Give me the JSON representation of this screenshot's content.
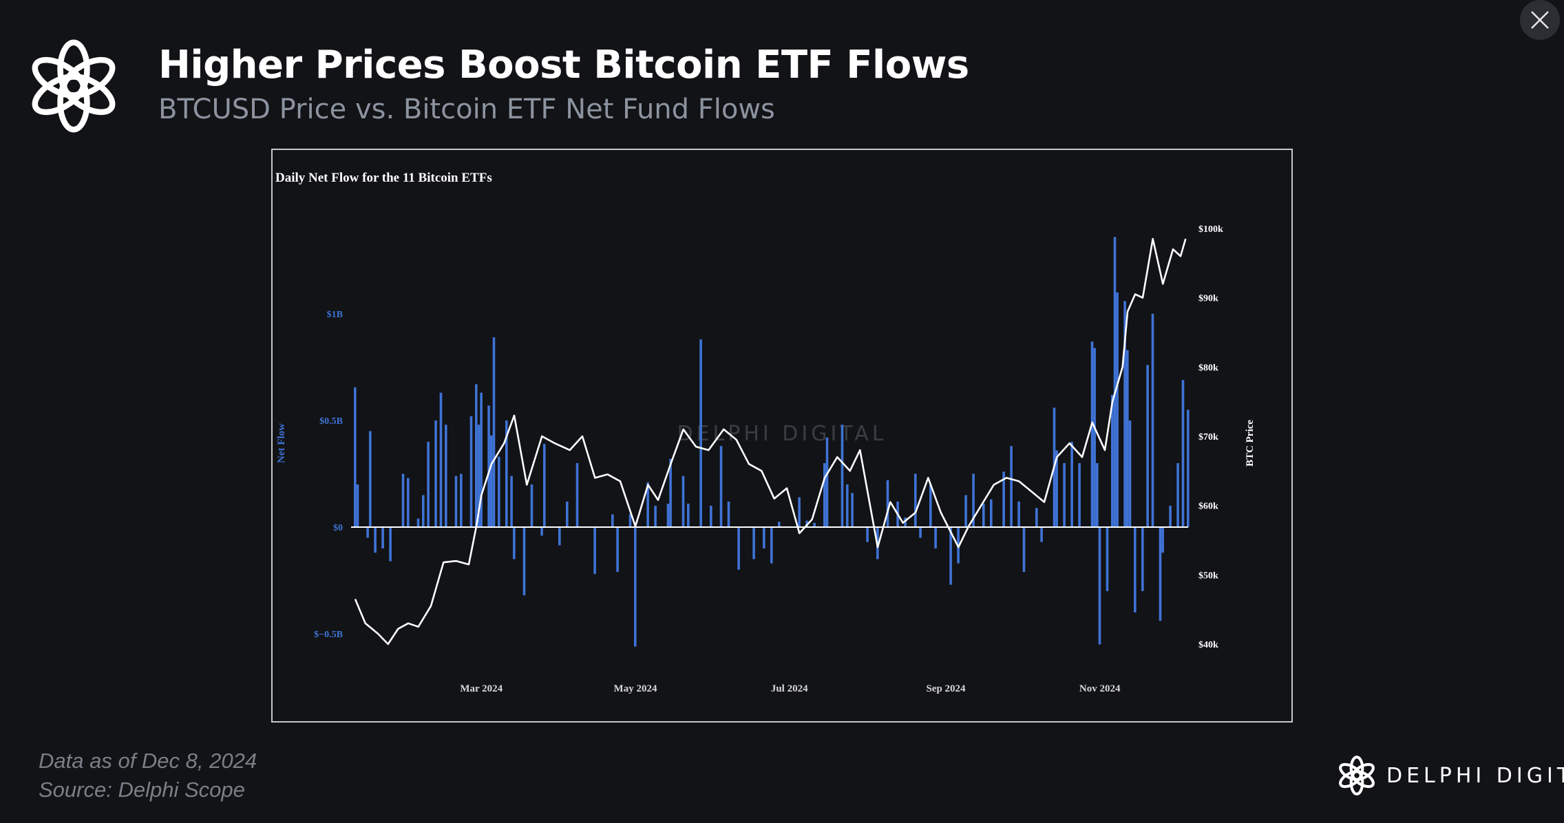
{
  "header": {
    "title": "Higher Prices Boost Bitcoin ETF Flows",
    "subtitle": "BTCUSD Price vs. Bitcoin ETF Net Fund Flows"
  },
  "icons": {
    "logo": "delphi-knot-logo-icon",
    "close": "close-icon"
  },
  "footer": {
    "data_as_of": "Data as of Dec 8, 2024",
    "source": "Source: Delphi Scope",
    "brand": "DELPHI DIGITAL"
  },
  "chart_data": {
    "type": "bar",
    "title": "Daily Net Flow for the 11 Bitcoin ETFs",
    "watermark": "DELPHI DIGITAL",
    "xlabel": "",
    "ylabel": "Net Flow",
    "y2label": "BTC Price",
    "x_ticks": [
      "Mar 2024",
      "May 2024",
      "Jul 2024",
      "Sep 2024",
      "Nov 2024"
    ],
    "x_tick_dates": [
      "2024-03-01",
      "2024-05-01",
      "2024-07-01",
      "2024-09-01",
      "2024-11-01"
    ],
    "y_ticks": [
      {
        "value": 1000,
        "label": "$1B"
      },
      {
        "value": 500,
        "label": "$0.5B"
      },
      {
        "value": 0,
        "label": "$0"
      },
      {
        "value": -500,
        "label": "$−0.5B"
      }
    ],
    "y2_ticks": [
      {
        "value": 100000,
        "label": "$100k"
      },
      {
        "value": 90000,
        "label": "$90k"
      },
      {
        "value": 80000,
        "label": "$80k"
      },
      {
        "value": 70000,
        "label": "$70k"
      },
      {
        "value": 60000,
        "label": "$60k"
      },
      {
        "value": 50000,
        "label": "$50k"
      },
      {
        "value": 40000,
        "label": "$40k"
      }
    ],
    "ylim": [
      -650,
      1400
    ],
    "y2lim": [
      40000,
      100000
    ],
    "colors": {
      "bars": "#3f73d6",
      "price_line": "#ffffff",
      "axis_labels_left": "#3f73d6",
      "axis_labels_right": "#ffffff",
      "zero_line": "#ffffff"
    },
    "series": [
      {
        "name": "Net Flow",
        "unit": "$M",
        "points": [
          [
            "2024-01-11",
            655
          ],
          [
            "2024-01-12",
            200
          ],
          [
            "2024-01-16",
            -50
          ],
          [
            "2024-01-17",
            450
          ],
          [
            "2024-01-19",
            -120
          ],
          [
            "2024-01-22",
            -100
          ],
          [
            "2024-01-25",
            -160
          ],
          [
            "2024-01-26",
            0
          ],
          [
            "2024-01-30",
            250
          ],
          [
            "2024-02-01",
            230
          ],
          [
            "2024-02-05",
            40
          ],
          [
            "2024-02-07",
            150
          ],
          [
            "2024-02-09",
            400
          ],
          [
            "2024-02-12",
            500
          ],
          [
            "2024-02-14",
            630
          ],
          [
            "2024-02-16",
            480
          ],
          [
            "2024-02-20",
            240
          ],
          [
            "2024-02-22",
            250
          ],
          [
            "2024-02-26",
            520
          ],
          [
            "2024-02-28",
            670
          ],
          [
            "2024-02-29",
            480
          ],
          [
            "2024-03-01",
            630
          ],
          [
            "2024-03-04",
            570
          ],
          [
            "2024-03-05",
            430
          ],
          [
            "2024-03-06",
            890
          ],
          [
            "2024-03-08",
            330
          ],
          [
            "2024-03-11",
            500
          ],
          [
            "2024-03-13",
            240
          ],
          [
            "2024-03-14",
            -150
          ],
          [
            "2024-03-18",
            -320
          ],
          [
            "2024-03-21",
            200
          ],
          [
            "2024-03-25",
            -40
          ],
          [
            "2024-03-26",
            390
          ],
          [
            "2024-04-01",
            -85
          ],
          [
            "2024-04-04",
            120
          ],
          [
            "2024-04-08",
            300
          ],
          [
            "2024-04-15",
            -220
          ],
          [
            "2024-04-22",
            60
          ],
          [
            "2024-04-24",
            -210
          ],
          [
            "2024-04-29",
            60
          ],
          [
            "2024-05-01",
            -560
          ],
          [
            "2024-05-06",
            210
          ],
          [
            "2024-05-09",
            100
          ],
          [
            "2024-05-14",
            110
          ],
          [
            "2024-05-15",
            320
          ],
          [
            "2024-05-20",
            240
          ],
          [
            "2024-05-22",
            110
          ],
          [
            "2024-05-27",
            880
          ],
          [
            "2024-05-31",
            100
          ],
          [
            "2024-06-04",
            380
          ],
          [
            "2024-06-07",
            120
          ],
          [
            "2024-06-11",
            -200
          ],
          [
            "2024-06-17",
            -150
          ],
          [
            "2024-06-21",
            -100
          ],
          [
            "2024-06-24",
            -170
          ],
          [
            "2024-06-27",
            25
          ],
          [
            "2024-07-05",
            140
          ],
          [
            "2024-07-08",
            30
          ],
          [
            "2024-07-11",
            20
          ],
          [
            "2024-07-15",
            300
          ],
          [
            "2024-07-16",
            420
          ],
          [
            "2024-07-22",
            480
          ],
          [
            "2024-07-24",
            200
          ],
          [
            "2024-07-26",
            160
          ],
          [
            "2024-08-01",
            -70
          ],
          [
            "2024-08-05",
            -150
          ],
          [
            "2024-08-09",
            220
          ],
          [
            "2024-08-13",
            120
          ],
          [
            "2024-08-16",
            45
          ],
          [
            "2024-08-20",
            250
          ],
          [
            "2024-08-22",
            -50
          ],
          [
            "2024-08-26",
            200
          ],
          [
            "2024-08-28",
            -100
          ],
          [
            "2024-09-03",
            -270
          ],
          [
            "2024-09-06",
            -170
          ],
          [
            "2024-09-09",
            150
          ],
          [
            "2024-09-12",
            250
          ],
          [
            "2024-09-16",
            110
          ],
          [
            "2024-09-19",
            130
          ],
          [
            "2024-09-24",
            260
          ],
          [
            "2024-09-27",
            380
          ],
          [
            "2024-09-30",
            120
          ],
          [
            "2024-10-02",
            -210
          ],
          [
            "2024-10-07",
            90
          ],
          [
            "2024-10-09",
            -70
          ],
          [
            "2024-10-14",
            560
          ],
          [
            "2024-10-15",
            360
          ],
          [
            "2024-10-18",
            300
          ],
          [
            "2024-10-21",
            400
          ],
          [
            "2024-10-24",
            300
          ],
          [
            "2024-10-29",
            870
          ],
          [
            "2024-10-30",
            840
          ],
          [
            "2024-10-31",
            300
          ],
          [
            "2024-11-01",
            -550
          ],
          [
            "2024-11-04",
            -300
          ],
          [
            "2024-11-06",
            620
          ],
          [
            "2024-11-07",
            1360
          ],
          [
            "2024-11-08",
            1100
          ],
          [
            "2024-11-11",
            1060
          ],
          [
            "2024-11-12",
            830
          ],
          [
            "2024-11-13",
            500
          ],
          [
            "2024-11-15",
            -400
          ],
          [
            "2024-11-18",
            -300
          ],
          [
            "2024-11-20",
            760
          ],
          [
            "2024-11-22",
            1000
          ],
          [
            "2024-11-25",
            -440
          ],
          [
            "2024-11-26",
            -120
          ],
          [
            "2024-11-29",
            100
          ],
          [
            "2024-12-02",
            300
          ],
          [
            "2024-12-04",
            690
          ],
          [
            "2024-12-06",
            550
          ]
        ]
      },
      {
        "name": "BTC Price",
        "unit": "USD",
        "points": [
          [
            "2024-01-11",
            46500
          ],
          [
            "2024-01-15",
            43000
          ],
          [
            "2024-01-20",
            41500
          ],
          [
            "2024-01-24",
            40000
          ],
          [
            "2024-01-28",
            42200
          ],
          [
            "2024-02-01",
            43000
          ],
          [
            "2024-02-05",
            42500
          ],
          [
            "2024-02-10",
            45500
          ],
          [
            "2024-02-15",
            51800
          ],
          [
            "2024-02-20",
            52000
          ],
          [
            "2024-02-25",
            51500
          ],
          [
            "2024-02-28",
            57000
          ],
          [
            "2024-03-01",
            61500
          ],
          [
            "2024-03-05",
            66000
          ],
          [
            "2024-03-10",
            69000
          ],
          [
            "2024-03-14",
            73000
          ],
          [
            "2024-03-19",
            63000
          ],
          [
            "2024-03-25",
            70000
          ],
          [
            "2024-03-30",
            69000
          ],
          [
            "2024-04-05",
            68000
          ],
          [
            "2024-04-10",
            70000
          ],
          [
            "2024-04-15",
            64000
          ],
          [
            "2024-04-20",
            64500
          ],
          [
            "2024-04-25",
            63500
          ],
          [
            "2024-05-01",
            57000
          ],
          [
            "2024-05-06",
            63000
          ],
          [
            "2024-05-10",
            60800
          ],
          [
            "2024-05-15",
            66000
          ],
          [
            "2024-05-20",
            71000
          ],
          [
            "2024-05-25",
            68500
          ],
          [
            "2024-05-30",
            68000
          ],
          [
            "2024-06-05",
            71000
          ],
          [
            "2024-06-10",
            69500
          ],
          [
            "2024-06-15",
            66000
          ],
          [
            "2024-06-20",
            65000
          ],
          [
            "2024-06-25",
            61000
          ],
          [
            "2024-06-30",
            62500
          ],
          [
            "2024-07-05",
            56000
          ],
          [
            "2024-07-10",
            58000
          ],
          [
            "2024-07-15",
            64000
          ],
          [
            "2024-07-20",
            67000
          ],
          [
            "2024-07-25",
            65000
          ],
          [
            "2024-07-29",
            68000
          ],
          [
            "2024-08-05",
            54000
          ],
          [
            "2024-08-10",
            60500
          ],
          [
            "2024-08-15",
            57500
          ],
          [
            "2024-08-20",
            59000
          ],
          [
            "2024-08-25",
            64000
          ],
          [
            "2024-08-30",
            59000
          ],
          [
            "2024-09-06",
            54000
          ],
          [
            "2024-09-10",
            57000
          ],
          [
            "2024-09-15",
            60000
          ],
          [
            "2024-09-20",
            63000
          ],
          [
            "2024-09-25",
            64000
          ],
          [
            "2024-09-30",
            63500
          ],
          [
            "2024-10-05",
            62000
          ],
          [
            "2024-10-10",
            60500
          ],
          [
            "2024-10-15",
            67000
          ],
          [
            "2024-10-20",
            69000
          ],
          [
            "2024-10-25",
            67000
          ],
          [
            "2024-10-29",
            72000
          ],
          [
            "2024-11-03",
            68000
          ],
          [
            "2024-11-06",
            75000
          ],
          [
            "2024-11-10",
            80000
          ],
          [
            "2024-11-12",
            88000
          ],
          [
            "2024-11-15",
            90500
          ],
          [
            "2024-11-18",
            90000
          ],
          [
            "2024-11-22",
            98500
          ],
          [
            "2024-11-26",
            92000
          ],
          [
            "2024-11-30",
            97000
          ],
          [
            "2024-12-03",
            96000
          ],
          [
            "2024-12-05",
            98500
          ]
        ]
      }
    ]
  }
}
